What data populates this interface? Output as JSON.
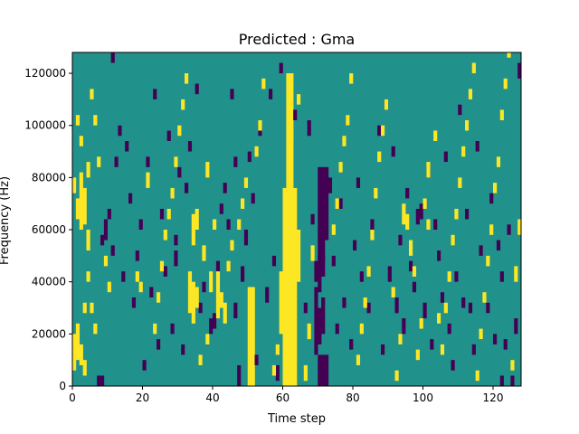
{
  "chart_data": {
    "type": "heatmap",
    "title": "Predicted : Gma",
    "xlabel": "Time step",
    "ylabel": "Frequency (Hz)",
    "xlim": [
      0,
      128
    ],
    "ylim": [
      0,
      128000
    ],
    "xticks": [
      0,
      20,
      40,
      60,
      80,
      100,
      120
    ],
    "xtick_labels": [
      "0",
      "20",
      "40",
      "60",
      "80",
      "100",
      "120"
    ],
    "yticks": [
      0,
      20000,
      40000,
      60000,
      80000,
      100000,
      120000
    ],
    "ytick_labels": [
      "0",
      "20000",
      "40000",
      "60000",
      "80000",
      "100000",
      "120000"
    ],
    "colormap": "viridis",
    "levels": [
      {
        "value": -1,
        "color": "#440154"
      },
      {
        "value": 0,
        "color": "#21918c"
      },
      {
        "value": 1,
        "color": "#fde725"
      }
    ],
    "background_value": 0,
    "grid": false,
    "legend": "none",
    "cells": [
      [
        60,
        0,
        76,
        1
      ],
      [
        61,
        0,
        76,
        1
      ],
      [
        62,
        0,
        76,
        1
      ],
      [
        61,
        0,
        120,
        1
      ],
      [
        62,
        0,
        120,
        1
      ],
      [
        63,
        0,
        76,
        1
      ],
      [
        60,
        0,
        44,
        1
      ],
      [
        62,
        0,
        60,
        1
      ],
      [
        59,
        20,
        44,
        1
      ],
      [
        64,
        40,
        60,
        1
      ],
      [
        50,
        0,
        38,
        1
      ],
      [
        51,
        0,
        38,
        1
      ],
      [
        70,
        0,
        12,
        -1
      ],
      [
        71,
        0,
        12,
        -1
      ],
      [
        72,
        0,
        12,
        -1
      ],
      [
        69,
        12,
        38,
        -1
      ],
      [
        70,
        16,
        30,
        -1
      ],
      [
        71,
        20,
        34,
        -1
      ],
      [
        70,
        48,
        84,
        -1
      ],
      [
        71,
        48,
        84,
        -1
      ],
      [
        72,
        56,
        84,
        -1
      ],
      [
        69,
        40,
        48,
        -1
      ],
      [
        70,
        36,
        50,
        -1
      ],
      [
        71,
        42,
        50,
        -1
      ],
      [
        0,
        6,
        20,
        1
      ],
      [
        1,
        10,
        24,
        1
      ],
      [
        2,
        8,
        16,
        1
      ],
      [
        3,
        4,
        10,
        1
      ],
      [
        2,
        60,
        82,
        1
      ],
      [
        3,
        62,
        76,
        1
      ],
      [
        1,
        64,
        72,
        1
      ],
      [
        0,
        74,
        80,
        1
      ],
      [
        4,
        52,
        60,
        1
      ],
      [
        5,
        28,
        32,
        1
      ],
      [
        6,
        20,
        24,
        1
      ],
      [
        4,
        80,
        86,
        1
      ],
      [
        1,
        100,
        104,
        1
      ],
      [
        2,
        92,
        96,
        1
      ],
      [
        5,
        110,
        114,
        1
      ],
      [
        4,
        40,
        44,
        1
      ],
      [
        3,
        28,
        32,
        1
      ],
      [
        6,
        100,
        104,
        1
      ],
      [
        7,
        84,
        88,
        1
      ],
      [
        7,
        0,
        4,
        -1
      ],
      [
        8,
        0,
        4,
        -1
      ],
      [
        8,
        54,
        58,
        -1
      ],
      [
        9,
        56,
        64,
        -1
      ],
      [
        10,
        64,
        68,
        -1
      ],
      [
        11,
        50,
        54,
        -1
      ],
      [
        12,
        84,
        88,
        -1
      ],
      [
        13,
        96,
        100,
        -1
      ],
      [
        11,
        124,
        128,
        -1
      ],
      [
        14,
        40,
        44,
        -1
      ],
      [
        15,
        90,
        94,
        -1
      ],
      [
        16,
        70,
        74,
        -1
      ],
      [
        17,
        30,
        34,
        -1
      ],
      [
        18,
        48,
        52,
        -1
      ],
      [
        19,
        60,
        64,
        -1
      ],
      [
        20,
        6,
        10,
        -1
      ],
      [
        21,
        84,
        88,
        -1
      ],
      [
        22,
        34,
        38,
        -1
      ],
      [
        23,
        110,
        114,
        -1
      ],
      [
        24,
        14,
        18,
        -1
      ],
      [
        25,
        64,
        68,
        -1
      ],
      [
        26,
        42,
        46,
        -1
      ],
      [
        27,
        94,
        98,
        -1
      ],
      [
        28,
        20,
        24,
        -1
      ],
      [
        29,
        54,
        58,
        -1
      ],
      [
        30,
        80,
        84,
        -1
      ],
      [
        31,
        12,
        16,
        -1
      ],
      [
        32,
        74,
        78,
        -1
      ],
      [
        36,
        28,
        32,
        -1
      ],
      [
        37,
        36,
        40,
        -1
      ],
      [
        39,
        20,
        26,
        -1
      ],
      [
        40,
        22,
        28,
        -1
      ],
      [
        41,
        44,
        48,
        -1
      ],
      [
        42,
        66,
        70,
        -1
      ],
      [
        43,
        74,
        78,
        -1
      ],
      [
        44,
        60,
        64,
        -1
      ],
      [
        45,
        110,
        114,
        -1
      ],
      [
        46,
        26,
        32,
        -1
      ],
      [
        47,
        0,
        8,
        -1
      ],
      [
        48,
        40,
        46,
        -1
      ],
      [
        49,
        54,
        60,
        -1
      ],
      [
        50,
        86,
        90,
        -1
      ],
      [
        51,
        70,
        74,
        -1
      ],
      [
        52,
        8,
        12,
        -1
      ],
      [
        53,
        96,
        100,
        -1
      ],
      [
        55,
        32,
        38,
        -1
      ],
      [
        56,
        110,
        114,
        -1
      ],
      [
        57,
        46,
        50,
        -1
      ],
      [
        58,
        2,
        8,
        -1
      ],
      [
        59,
        120,
        124,
        -1
      ],
      [
        66,
        28,
        32,
        -1
      ],
      [
        67,
        96,
        102,
        -1
      ],
      [
        68,
        62,
        66,
        -1
      ],
      [
        73,
        74,
        80,
        -1
      ],
      [
        74,
        46,
        50,
        -1
      ],
      [
        75,
        20,
        24,
        -1
      ],
      [
        76,
        68,
        72,
        -1
      ],
      [
        77,
        30,
        34,
        -1
      ],
      [
        78,
        100,
        104,
        -1
      ],
      [
        79,
        14,
        18,
        -1
      ],
      [
        80,
        52,
        56,
        -1
      ],
      [
        81,
        76,
        80,
        -1
      ],
      [
        82,
        40,
        44,
        -1
      ],
      [
        84,
        28,
        32,
        -1
      ],
      [
        85,
        60,
        64,
        -1
      ],
      [
        87,
        96,
        100,
        -1
      ],
      [
        88,
        12,
        16,
        -1
      ],
      [
        90,
        40,
        46,
        -1
      ],
      [
        91,
        88,
        92,
        -1
      ],
      [
        92,
        28,
        34,
        -1
      ],
      [
        93,
        54,
        58,
        -1
      ],
      [
        94,
        20,
        26,
        -1
      ],
      [
        95,
        72,
        76,
        -1
      ],
      [
        96,
        44,
        48,
        -1
      ],
      [
        97,
        36,
        40,
        -1
      ],
      [
        98,
        62,
        68,
        -1
      ],
      [
        99,
        64,
        70,
        -1
      ],
      [
        100,
        26,
        32,
        -1
      ],
      [
        101,
        80,
        84,
        -1
      ],
      [
        102,
        14,
        18,
        -1
      ],
      [
        103,
        60,
        64,
        -1
      ],
      [
        104,
        48,
        52,
        -1
      ],
      [
        105,
        32,
        36,
        -1
      ],
      [
        106,
        86,
        90,
        -1
      ],
      [
        107,
        20,
        24,
        -1
      ],
      [
        108,
        6,
        10,
        -1
      ],
      [
        109,
        40,
        44,
        -1
      ],
      [
        110,
        104,
        108,
        -1
      ],
      [
        111,
        30,
        34,
        -1
      ],
      [
        112,
        64,
        68,
        -1
      ],
      [
        113,
        28,
        32,
        -1
      ],
      [
        114,
        12,
        16,
        -1
      ],
      [
        115,
        90,
        94,
        -1
      ],
      [
        116,
        50,
        54,
        -1
      ],
      [
        118,
        28,
        32,
        -1
      ],
      [
        119,
        70,
        74,
        -1
      ],
      [
        120,
        16,
        20,
        -1
      ],
      [
        121,
        52,
        56,
        -1
      ],
      [
        122,
        40,
        44,
        -1
      ],
      [
        123,
        14,
        18,
        -1
      ],
      [
        124,
        58,
        62,
        -1
      ],
      [
        125,
        0,
        4,
        -1
      ],
      [
        126,
        20,
        26,
        -1
      ],
      [
        127,
        118,
        124,
        -1
      ],
      [
        29,
        46,
        52,
        -1
      ],
      [
        33,
        90,
        94,
        -1
      ],
      [
        46,
        84,
        88,
        -1
      ],
      [
        63,
        102,
        106,
        -1
      ],
      [
        89,
        106,
        110,
        -1
      ],
      [
        122,
        0,
        4,
        -1
      ],
      [
        35,
        112,
        116,
        -1
      ],
      [
        33,
        28,
        44,
        1
      ],
      [
        34,
        24,
        40,
        1
      ],
      [
        35,
        30,
        38,
        1
      ],
      [
        41,
        26,
        44,
        1
      ],
      [
        42,
        30,
        36,
        1
      ],
      [
        43,
        24,
        32,
        1
      ],
      [
        34,
        54,
        66,
        1
      ],
      [
        35,
        60,
        68,
        1
      ],
      [
        37,
        48,
        54,
        1
      ],
      [
        39,
        36,
        44,
        1
      ],
      [
        40,
        60,
        64,
        1
      ],
      [
        38,
        80,
        86,
        1
      ],
      [
        18,
        40,
        44,
        1
      ],
      [
        19,
        36,
        40,
        1
      ],
      [
        21,
        76,
        82,
        1
      ],
      [
        23,
        20,
        24,
        1
      ],
      [
        24,
        32,
        36,
        1
      ],
      [
        25,
        44,
        48,
        1
      ],
      [
        26,
        56,
        60,
        1
      ],
      [
        27,
        64,
        68,
        1
      ],
      [
        28,
        72,
        76,
        1
      ],
      [
        29,
        84,
        88,
        1
      ],
      [
        30,
        96,
        100,
        1
      ],
      [
        31,
        106,
        110,
        1
      ],
      [
        32,
        116,
        120,
        1
      ],
      [
        36,
        8,
        12,
        1
      ],
      [
        38,
        16,
        20,
        1
      ],
      [
        44,
        44,
        48,
        1
      ],
      [
        45,
        52,
        56,
        1
      ],
      [
        47,
        60,
        64,
        1
      ],
      [
        48,
        68,
        72,
        1
      ],
      [
        49,
        76,
        80,
        1
      ],
      [
        52,
        88,
        92,
        1
      ],
      [
        53,
        98,
        102,
        1
      ],
      [
        54,
        114,
        118,
        1
      ],
      [
        57,
        4,
        8,
        1
      ],
      [
        58,
        12,
        16,
        1
      ],
      [
        62,
        94,
        98,
        1
      ],
      [
        64,
        108,
        112,
        1
      ],
      [
        66,
        2,
        8,
        1
      ],
      [
        67,
        18,
        24,
        1
      ],
      [
        68,
        48,
        54,
        1
      ],
      [
        74,
        58,
        62,
        1
      ],
      [
        75,
        68,
        72,
        1
      ],
      [
        76,
        82,
        86,
        1
      ],
      [
        77,
        92,
        96,
        1
      ],
      [
        78,
        100,
        104,
        1
      ],
      [
        79,
        116,
        120,
        1
      ],
      [
        81,
        8,
        12,
        1
      ],
      [
        82,
        20,
        24,
        1
      ],
      [
        83,
        30,
        34,
        1
      ],
      [
        84,
        42,
        46,
        1
      ],
      [
        85,
        56,
        60,
        1
      ],
      [
        86,
        72,
        76,
        1
      ],
      [
        87,
        86,
        90,
        1
      ],
      [
        88,
        96,
        100,
        1
      ],
      [
        89,
        106,
        110,
        1
      ],
      [
        91,
        34,
        38,
        1
      ],
      [
        92,
        2,
        6,
        1
      ],
      [
        93,
        16,
        20,
        1
      ],
      [
        94,
        62,
        70,
        1
      ],
      [
        95,
        60,
        66,
        1
      ],
      [
        96,
        50,
        56,
        1
      ],
      [
        97,
        42,
        46,
        1
      ],
      [
        98,
        10,
        14,
        1
      ],
      [
        99,
        22,
        26,
        1
      ],
      [
        100,
        68,
        72,
        1
      ],
      [
        101,
        80,
        86,
        1
      ],
      [
        103,
        94,
        98,
        1
      ],
      [
        105,
        12,
        16,
        1
      ],
      [
        106,
        28,
        32,
        1
      ],
      [
        107,
        40,
        44,
        1
      ],
      [
        108,
        54,
        58,
        1
      ],
      [
        109,
        64,
        68,
        1
      ],
      [
        110,
        76,
        80,
        1
      ],
      [
        111,
        88,
        92,
        1
      ],
      [
        112,
        98,
        102,
        1
      ],
      [
        113,
        110,
        114,
        1
      ],
      [
        114,
        120,
        124,
        1
      ],
      [
        115,
        2,
        6,
        1
      ],
      [
        116,
        18,
        22,
        1
      ],
      [
        117,
        32,
        36,
        1
      ],
      [
        118,
        46,
        50,
        1
      ],
      [
        119,
        58,
        62,
        1
      ],
      [
        120,
        74,
        78,
        1
      ],
      [
        121,
        84,
        88,
        1
      ],
      [
        122,
        102,
        106,
        1
      ],
      [
        123,
        114,
        118,
        1
      ],
      [
        124,
        126,
        128,
        1
      ],
      [
        125,
        6,
        10,
        1
      ],
      [
        126,
        40,
        46,
        1
      ],
      [
        127,
        58,
        64,
        1
      ],
      [
        101,
        60,
        64,
        1
      ],
      [
        104,
        24,
        28,
        1
      ],
      [
        9,
        46,
        50,
        1
      ],
      [
        10,
        36,
        40,
        1
      ]
    ]
  }
}
